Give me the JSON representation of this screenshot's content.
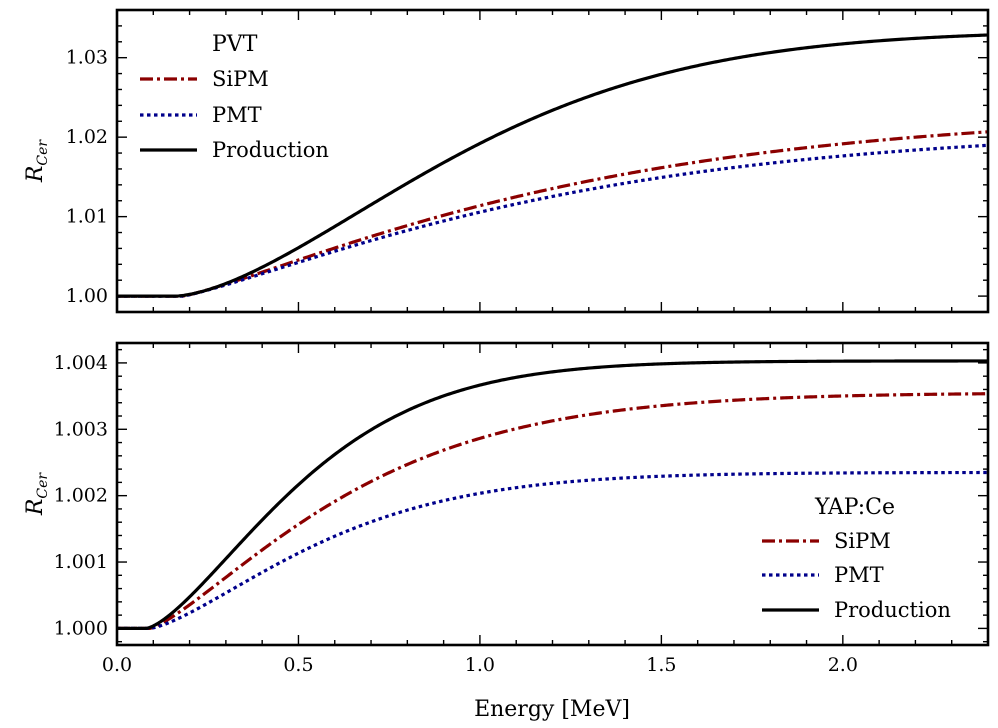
{
  "figure": {
    "xlabel": "Energy [MeV]"
  },
  "chart_data": [
    {
      "type": "line",
      "id": "top",
      "title": "",
      "xlabel": "",
      "ylabel_base": "R",
      "ylabel_sub": "Cer",
      "xlim": [
        0.0,
        2.4
      ],
      "ylim": [
        0.998,
        1.036
      ],
      "xticks": [
        0.0,
        0.5,
        1.0,
        1.5,
        2.0
      ],
      "xtick_labels": [
        "",
        "",
        "",
        "",
        ""
      ],
      "yticks": [
        1.0,
        1.01,
        1.02,
        1.03
      ],
      "ytick_labels": [
        "1.00",
        "1.01",
        "1.02",
        "1.03"
      ],
      "legend": {
        "title": "PVT",
        "loc": "upper left"
      },
      "series": [
        {
          "name": "SiPM",
          "color": "#8b0000",
          "style": "dashdot",
          "threshold": 0.18,
          "amplitude": 0.02315,
          "rate": 0.88,
          "power": 1.2
        },
        {
          "name": "PMT",
          "color": "#00008b",
          "style": "dotted",
          "threshold": 0.18,
          "amplitude": 0.0211,
          "rate": 0.9,
          "power": 1.2
        },
        {
          "name": "Production",
          "color": "#000000",
          "style": "solid",
          "threshold": 0.16,
          "amplitude": 0.0334,
          "rate": 1.08,
          "power": 1.6
        }
      ]
    },
    {
      "type": "line",
      "id": "bottom",
      "title": "",
      "xlabel": "Energy [MeV]",
      "ylabel_base": "R",
      "ylabel_sub": "Cer",
      "xlim": [
        0.0,
        2.4
      ],
      "ylim": [
        0.99975,
        1.0043
      ],
      "xticks": [
        0.0,
        0.5,
        1.0,
        1.5,
        2.0
      ],
      "xtick_labels": [
        "0.0",
        "0.5",
        "1.0",
        "1.5",
        "2.0"
      ],
      "yticks": [
        1.0,
        1.001,
        1.002,
        1.003,
        1.004
      ],
      "ytick_labels": [
        "1.000",
        "1.001",
        "1.002",
        "1.003",
        "1.004"
      ],
      "legend": {
        "title": "YAP:Ce",
        "loc": "lower right"
      },
      "series": [
        {
          "name": "SiPM",
          "color": "#8b0000",
          "style": "dashdot",
          "threshold": 0.09,
          "amplitude": 0.00355,
          "rate": 1.61,
          "power": 1.3
        },
        {
          "name": "PMT",
          "color": "#00008b",
          "style": "dotted",
          "threshold": 0.09,
          "amplitude": 0.00235,
          "rate": 1.81,
          "power": 1.4
        },
        {
          "name": "Production",
          "color": "#000000",
          "style": "solid",
          "threshold": 0.08,
          "amplitude": 0.00403,
          "rate": 1.99,
          "power": 1.45
        }
      ]
    }
  ]
}
